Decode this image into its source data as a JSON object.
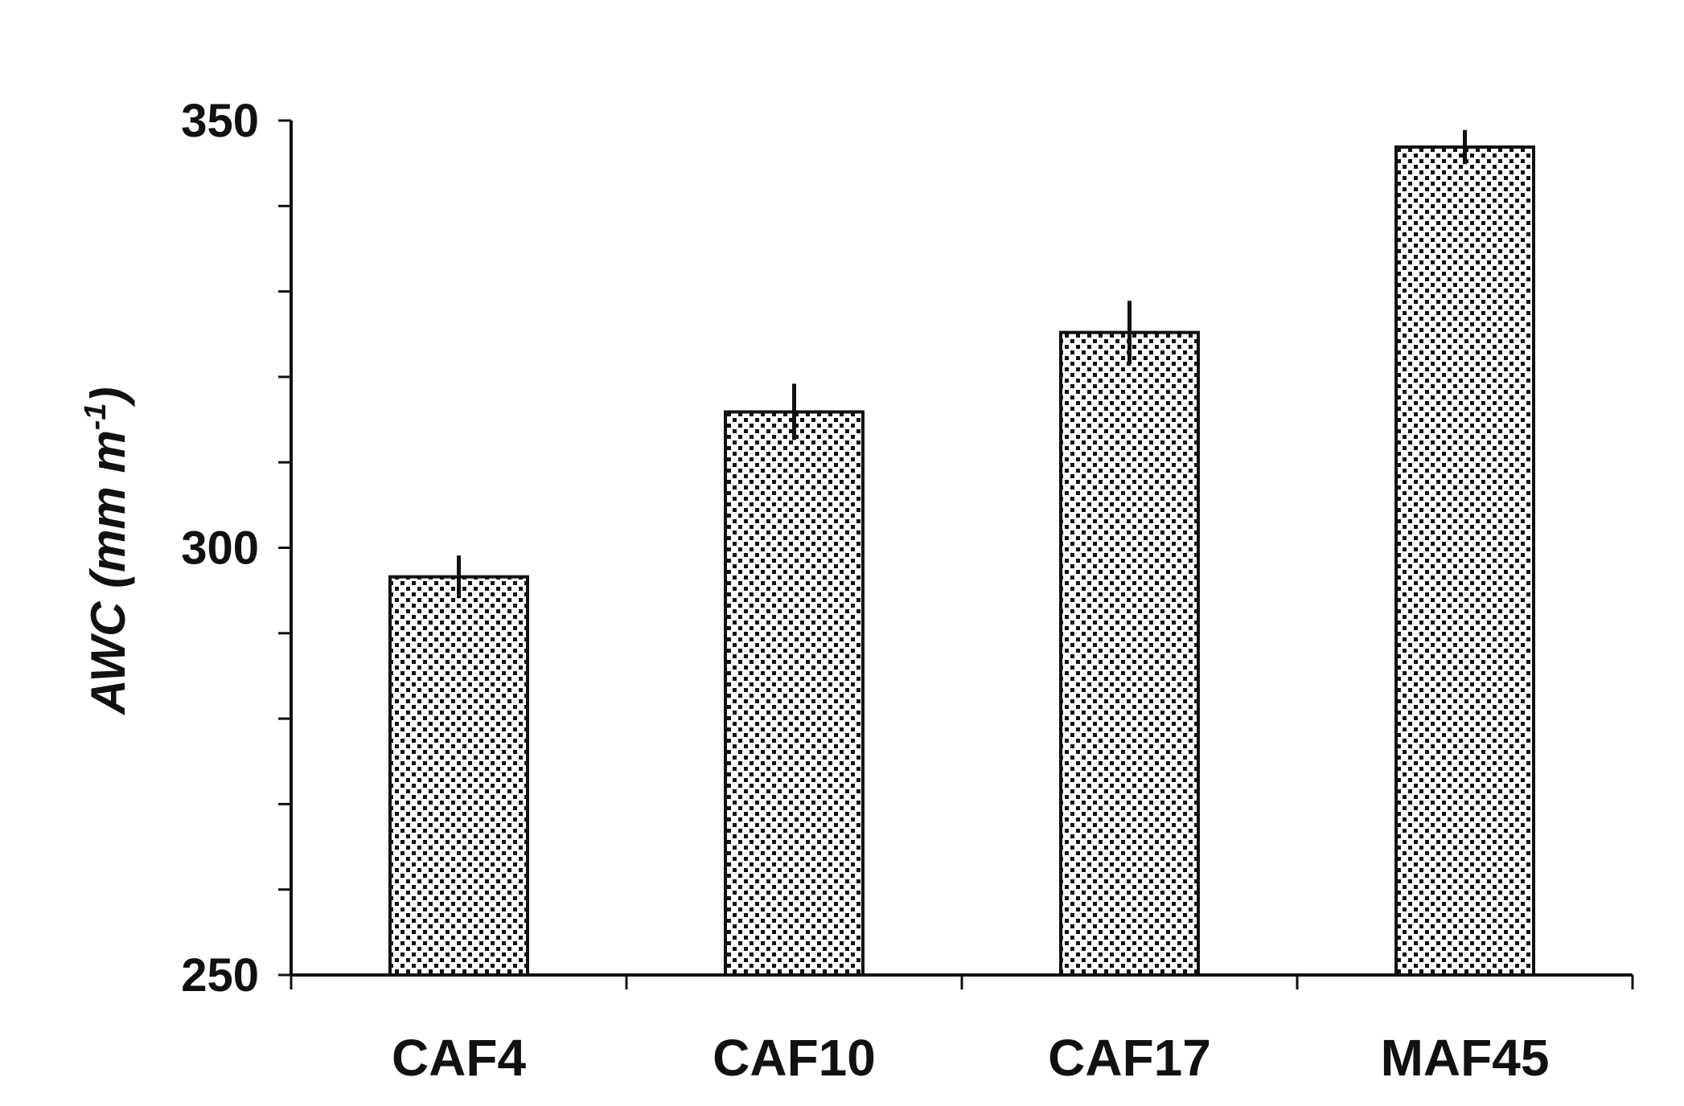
{
  "chart_data": {
    "type": "bar",
    "categories": [
      "CAF4",
      "CAF10",
      "CAF17",
      "MAF45"
    ],
    "values": [
      296.6,
      315.9,
      325.2,
      346.9
    ],
    "errors": [
      2.5,
      3.3,
      3.7,
      2.0
    ],
    "title": "",
    "xlabel": "",
    "ylabel": {
      "main": "AWC",
      "unit_open": " (mm m",
      "unit_sup": "-1",
      "unit_close": ")"
    },
    "ylim": [
      250,
      350
    ],
    "yticks": [
      "250",
      "300",
      "350"
    ],
    "minor_step": 10,
    "grid": false,
    "legend": "none",
    "bar_fill": "dotted pattern",
    "colors": {
      "bar_fill": "#ffffff",
      "bar_dots": "#111111",
      "axis": "#111111"
    }
  }
}
